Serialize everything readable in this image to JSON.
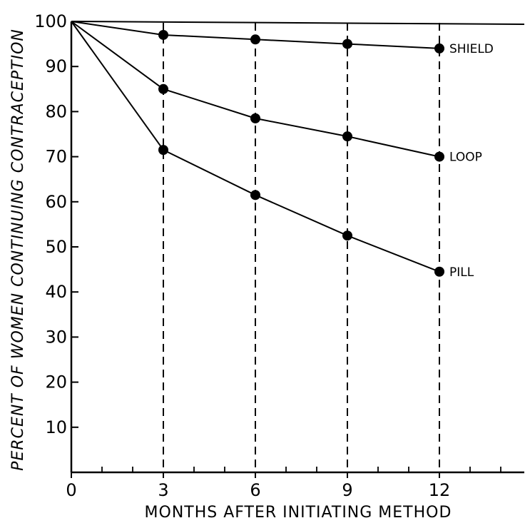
{
  "chart_data": {
    "type": "line",
    "title": "",
    "xlabel": "MONTHS AFTER INITIATING METHOD",
    "ylabel": "PERCENT OF WOMEN CONTINUING CONTRACEPTION",
    "xlim": [
      0,
      15
    ],
    "ylim": [
      0,
      100
    ],
    "x_ticks": [
      0,
      3,
      6,
      9,
      12
    ],
    "y_ticks": [
      10,
      20,
      30,
      40,
      50,
      60,
      70,
      80,
      90,
      100
    ],
    "x_tick_labels": [
      "0",
      "3",
      "6",
      "9",
      "12"
    ],
    "y_tick_labels": [
      "10",
      "20",
      "30",
      "40",
      "50",
      "60",
      "70",
      "80",
      "90",
      "100"
    ],
    "vertical_dashed_lines_at": [
      3,
      6,
      9,
      12
    ],
    "grid": false,
    "legend": "direct labels at line ends",
    "series": [
      {
        "name": "SHIELD",
        "x": [
          0,
          3,
          6,
          9,
          12
        ],
        "values": [
          100,
          97,
          96,
          95,
          94
        ]
      },
      {
        "name": "LOOP",
        "x": [
          0,
          3,
          6,
          9,
          12
        ],
        "values": [
          100,
          85,
          78.5,
          74.5,
          70
        ]
      },
      {
        "name": "PILL",
        "x": [
          0,
          3,
          6,
          9,
          12
        ],
        "values": [
          100,
          71.5,
          61.5,
          52.5,
          44.5
        ]
      }
    ]
  }
}
